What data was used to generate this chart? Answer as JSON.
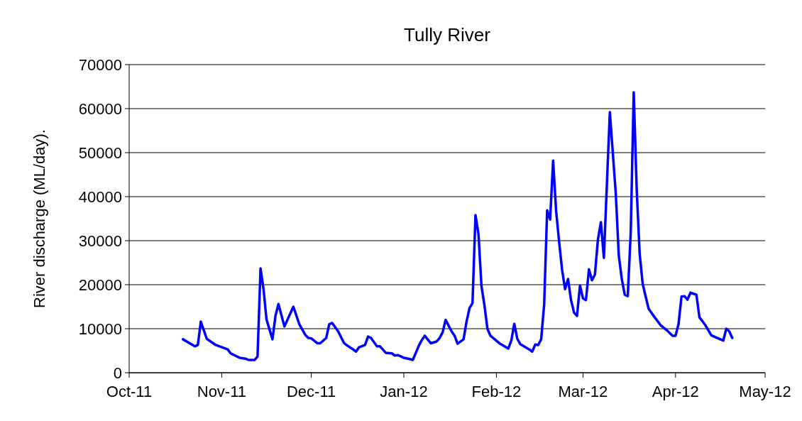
{
  "chart_data": {
    "type": "line",
    "title": "Tully River",
    "ylabel": "River discharge (ML/day).",
    "xlim": [
      "2011-10-01",
      "2012-05-01"
    ],
    "xticks": [
      {
        "value": "2011-10-01",
        "label": "Oct-11"
      },
      {
        "value": "2011-11-01",
        "label": "Nov-11"
      },
      {
        "value": "2011-12-01",
        "label": "Dec-11"
      },
      {
        "value": "2012-01-01",
        "label": "Jan-12"
      },
      {
        "value": "2012-02-01",
        "label": "Feb-12"
      },
      {
        "value": "2012-03-01",
        "label": "Mar-12"
      },
      {
        "value": "2012-04-01",
        "label": "Apr-12"
      },
      {
        "value": "2012-05-01",
        "label": "May-12"
      }
    ],
    "ylim": [
      0,
      70000
    ],
    "yticks": [
      0,
      10000,
      20000,
      30000,
      40000,
      50000,
      60000,
      70000
    ],
    "grid": "y",
    "marker": "none",
    "line_style": "solid",
    "x": [
      "2011-10-19",
      "2011-10-23",
      "2011-10-24",
      "2011-10-25",
      "2011-10-27",
      "2011-10-30",
      "2011-11-03",
      "2011-11-04",
      "2011-11-07",
      "2011-11-09",
      "2011-11-10",
      "2011-11-12",
      "2011-11-13",
      "2011-11-14",
      "2011-11-15",
      "2011-11-16",
      "2011-11-18",
      "2011-11-19",
      "2011-11-20",
      "2011-11-22",
      "2011-11-25",
      "2011-11-27",
      "2011-11-29",
      "2011-11-30",
      "2011-12-01",
      "2011-12-03",
      "2011-12-04",
      "2011-12-06",
      "2011-12-07",
      "2011-12-08",
      "2011-12-10",
      "2011-12-12",
      "2011-12-13",
      "2011-12-15",
      "2011-12-16",
      "2011-12-17",
      "2011-12-19",
      "2011-12-20",
      "2011-12-21",
      "2011-12-23",
      "2011-12-24",
      "2011-12-26",
      "2011-12-28",
      "2011-12-29",
      "2011-12-30",
      "2012-01-01",
      "2012-01-03",
      "2012-01-04",
      "2012-01-06",
      "2012-01-07",
      "2012-01-08",
      "2012-01-10",
      "2012-01-12",
      "2012-01-13",
      "2012-01-14",
      "2012-01-15",
      "2012-01-17",
      "2012-01-18",
      "2012-01-19",
      "2012-01-21",
      "2012-01-22",
      "2012-01-23",
      "2012-01-24",
      "2012-01-25",
      "2012-01-26",
      "2012-01-27",
      "2012-01-28",
      "2012-01-29",
      "2012-01-30",
      "2012-02-02",
      "2012-02-05",
      "2012-02-06",
      "2012-02-07",
      "2012-02-08",
      "2012-02-09",
      "2012-02-12",
      "2012-02-13",
      "2012-02-14",
      "2012-02-15",
      "2012-02-16",
      "2012-02-17",
      "2012-02-18",
      "2012-02-19",
      "2012-02-20",
      "2012-02-21",
      "2012-02-22",
      "2012-02-23",
      "2012-02-24",
      "2012-02-25",
      "2012-02-26",
      "2012-02-27",
      "2012-02-28",
      "2012-02-29",
      "2012-03-01",
      "2012-03-02",
      "2012-03-03",
      "2012-03-04",
      "2012-03-05",
      "2012-03-06",
      "2012-03-07",
      "2012-03-08",
      "2012-03-10",
      "2012-03-12",
      "2012-03-13",
      "2012-03-14",
      "2012-03-15",
      "2012-03-16",
      "2012-03-17",
      "2012-03-18",
      "2012-03-19",
      "2012-03-20",
      "2012-03-21",
      "2012-03-22",
      "2012-03-23",
      "2012-03-25",
      "2012-03-27",
      "2012-03-29",
      "2012-03-31",
      "2012-04-01",
      "2012-04-02",
      "2012-04-03",
      "2012-04-04",
      "2012-04-05",
      "2012-04-06",
      "2012-04-08",
      "2012-04-09",
      "2012-04-11",
      "2012-04-13",
      "2012-04-17",
      "2012-04-18",
      "2012-04-19",
      "2012-04-20"
    ],
    "series": [
      {
        "color": "#0000ff",
        "values": [
          7600,
          6000,
          6300,
          11600,
          7700,
          6300,
          5300,
          4400,
          3400,
          3200,
          2900,
          2900,
          3700,
          23700,
          19000,
          12100,
          7600,
          12900,
          15600,
          10500,
          15000,
          11000,
          8600,
          7900,
          7800,
          6700,
          6700,
          7900,
          11000,
          11300,
          9400,
          6700,
          6200,
          5300,
          4800,
          5800,
          6300,
          8200,
          7900,
          6000,
          6000,
          4500,
          4400,
          3900,
          4000,
          3400,
          3100,
          2900,
          6100,
          7400,
          8400,
          6700,
          7100,
          7900,
          9200,
          12000,
          9400,
          8400,
          6600,
          7600,
          11600,
          14700,
          15800,
          35800,
          31500,
          19700,
          15300,
          10000,
          8400,
          6700,
          5500,
          7300,
          11100,
          7700,
          6500,
          5300,
          4800,
          6400,
          6300,
          7600,
          15500,
          36900,
          34800,
          48200,
          36800,
          29800,
          23400,
          19000,
          21300,
          16500,
          13700,
          12900,
          19800,
          16900,
          16500,
          23500,
          21000,
          22300,
          30200,
          34200,
          26100,
          59200,
          40600,
          26600,
          21300,
          17700,
          17400,
          31900,
          63700,
          41600,
          26900,
          20200,
          17300,
          14500,
          12600,
          10800,
          9700,
          8400,
          8400,
          11000,
          17300,
          17400,
          16600,
          18200,
          17700,
          12600,
          10800,
          8500,
          7300,
          10000,
          9400,
          7900
        ]
      }
    ]
  }
}
